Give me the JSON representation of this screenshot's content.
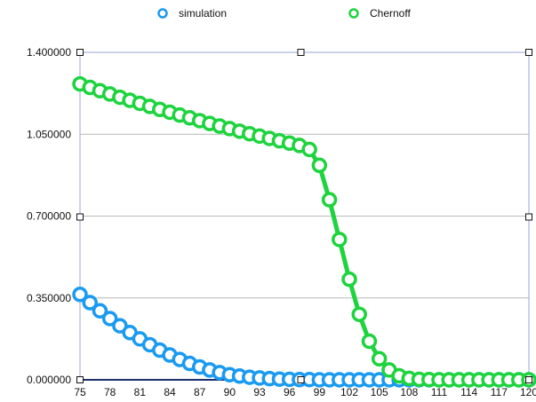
{
  "chart_data": {
    "type": "line",
    "x": [
      75,
      76,
      77,
      78,
      79,
      80,
      81,
      82,
      83,
      84,
      85,
      86,
      87,
      88,
      89,
      90,
      91,
      92,
      93,
      94,
      95,
      96,
      97,
      98,
      99,
      100,
      101,
      102,
      103,
      104,
      105,
      106,
      107,
      108,
      109,
      110,
      111,
      112,
      113,
      114,
      115,
      116,
      117,
      118,
      119,
      120
    ],
    "x_tick_labels": [
      "75",
      "78",
      "81",
      "84",
      "87",
      "90",
      "93",
      "96",
      "99",
      "102",
      "105",
      "108",
      "111",
      "114",
      "117",
      "120"
    ],
    "y_tick_labels": [
      "0.000000",
      "0.350000",
      "0.700000",
      "1.050000",
      "1.400000"
    ],
    "ylim": [
      0,
      1.4
    ],
    "xlim": [
      75,
      120
    ],
    "grid": "horizontal",
    "legend_position": "top",
    "series": [
      {
        "name": "simulation",
        "color": "#1a9af0",
        "values": [
          0.365,
          0.33,
          0.295,
          0.262,
          0.231,
          0.202,
          0.175,
          0.15,
          0.127,
          0.106,
          0.087,
          0.07,
          0.055,
          0.042,
          0.031,
          0.022,
          0.016,
          0.011,
          0.008,
          0.005,
          0.003,
          0.002,
          0.001,
          0.001,
          0.0,
          0.0,
          0.0,
          0.0,
          0.0,
          0.0,
          0.0,
          0.0,
          0.0,
          0.0,
          0.0,
          0.0,
          0.0,
          0.0,
          0.0,
          0.0,
          0.0,
          0.0,
          0.0,
          0.0,
          0.0,
          0.0
        ]
      },
      {
        "name": "Chernoff",
        "color": "#1ed43e",
        "values": [
          1.265,
          1.25,
          1.236,
          1.222,
          1.208,
          1.195,
          1.182,
          1.169,
          1.156,
          1.144,
          1.132,
          1.12,
          1.108,
          1.096,
          1.085,
          1.074,
          1.063,
          1.052,
          1.042,
          1.032,
          1.022,
          1.012,
          1.002,
          0.985,
          0.917,
          0.77,
          0.6,
          0.43,
          0.28,
          0.165,
          0.09,
          0.042,
          0.017,
          0.006,
          0.002,
          0.001,
          0.0,
          0.0,
          0.0,
          0.0,
          0.0,
          0.0,
          0.0,
          0.0,
          0.0,
          0.0
        ]
      }
    ]
  }
}
